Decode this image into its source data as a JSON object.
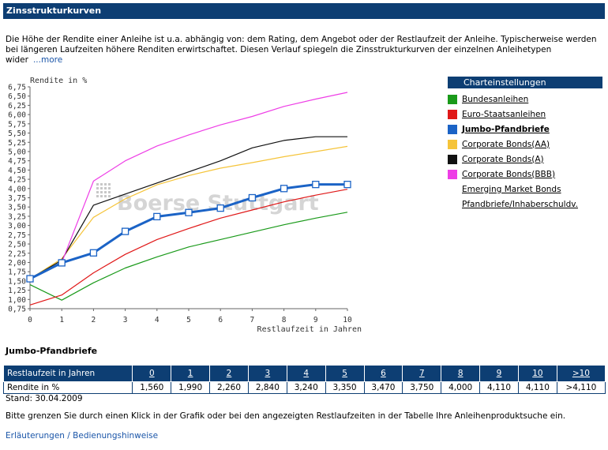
{
  "page": {
    "title": "Zinsstrukturkurven",
    "intro_text": "Die Höhe der Rendite einer Anleihe ist u.a. abhängig von: dem Rating, dem Angebot oder der Restlaufzeit der Anleihe. Typischerweise werden bei längeren Laufzeiten höhere Renditen erwirtschaftet. Diesen Verlauf spiegeln die Zinsstrukturkurven der einzelnen Anleihetypen wider",
    "more_link": "...more",
    "watermark": "Boerse Stuttgart"
  },
  "settings": {
    "title": "Charteinstellungen",
    "items": [
      {
        "label": "Bundesanleihen",
        "color": "#1a9a1a",
        "active": false
      },
      {
        "label": "Euro-Staatsanleihen",
        "color": "#e01818",
        "active": false
      },
      {
        "label": "Jumbo-Pfandbriefe",
        "color": "#1b63c6",
        "active": true
      },
      {
        "label": "Corporate Bonds(AA)",
        "color": "#f5c43a",
        "active": false
      },
      {
        "label": "Corporate Bonds(A)",
        "color": "#111111",
        "active": false
      },
      {
        "label": "Corporate Bonds(BBB)",
        "color": "#ee3ee6",
        "active": false
      },
      {
        "label": "Emerging Market Bonds",
        "color": "",
        "active": false
      },
      {
        "label": "Pfandbriefe/Inhaberschuldv.",
        "color": "",
        "active": false
      }
    ]
  },
  "chart_data": {
    "type": "line",
    "title": "",
    "ylabel": "Rendite in %",
    "xlabel": "Restlaufzeit in Jahren",
    "x": [
      0,
      1,
      2,
      3,
      4,
      5,
      6,
      7,
      8,
      9,
      10
    ],
    "xlim": [
      0,
      10
    ],
    "ylim": [
      0.75,
      6.75
    ],
    "ytick_step": 0.25,
    "ytick_labels": [
      "6,75",
      "6,50",
      "6,25",
      "6,00",
      "5,75",
      "5,50",
      "5,25",
      "5,00",
      "4,75",
      "4,50",
      "4,25",
      "4,00",
      "3,75",
      "3,50",
      "3,25",
      "3,00",
      "2,75",
      "2,50",
      "2,25",
      "2,00",
      "1,75",
      "1,50",
      "1,25",
      "1,00",
      "0,75"
    ],
    "xtick_labels": [
      "0",
      "1",
      "2",
      "3",
      "4",
      "5",
      "6",
      "7",
      "8",
      "9",
      "10"
    ],
    "grid": false,
    "series": [
      {
        "name": "Bundesanleihen",
        "color": "#1a9a1a",
        "values": [
          1.4,
          0.98,
          1.45,
          1.85,
          2.15,
          2.42,
          2.62,
          2.82,
          3.02,
          3.2,
          3.36
        ],
        "highlight": false
      },
      {
        "name": "Euro-Staatsanleihen",
        "color": "#e01818",
        "values": [
          0.85,
          1.12,
          1.72,
          2.22,
          2.62,
          2.92,
          3.2,
          3.42,
          3.64,
          3.82,
          3.98
        ],
        "highlight": false
      },
      {
        "name": "Corporate Bonds(AA)",
        "color": "#f5c43a",
        "values": [
          1.56,
          2.1,
          3.22,
          3.72,
          4.1,
          4.35,
          4.55,
          4.7,
          4.86,
          5.0,
          5.14
        ],
        "highlight": false
      },
      {
        "name": "Corporate Bonds(A)",
        "color": "#111111",
        "values": [
          1.56,
          2.06,
          3.55,
          3.85,
          4.15,
          4.45,
          4.75,
          5.1,
          5.3,
          5.4,
          5.4
        ],
        "highlight": false
      },
      {
        "name": "Corporate Bonds(BBB)",
        "color": "#ee3ee6",
        "values": [
          1.56,
          2.0,
          4.2,
          4.75,
          5.15,
          5.45,
          5.72,
          5.95,
          6.22,
          6.42,
          6.6
        ],
        "highlight": false
      },
      {
        "name": "Jumbo-Pfandbriefe",
        "color": "#1b63c6",
        "values": [
          1.56,
          1.99,
          2.26,
          2.84,
          3.24,
          3.35,
          3.47,
          3.75,
          4.0,
          4.11,
          4.11
        ],
        "highlight": true
      }
    ]
  },
  "table": {
    "title": "Jumbo-Pfandbriefe",
    "header_label": "Restlaufzeit in Jahren",
    "columns": [
      "0",
      "1",
      "2",
      "3",
      "4",
      "5",
      "6",
      "7",
      "8",
      "9",
      "10",
      ">10"
    ],
    "row_label": "Rendite in %",
    "values": [
      "1,560",
      "1,990",
      "2,260",
      "2,840",
      "3,240",
      "3,350",
      "3,470",
      "3,750",
      "4,000",
      "4,110",
      "4,110",
      ">4,110"
    ],
    "stand": "Stand: 30.04.2009"
  },
  "hint": "Bitte grenzen Sie durch einen Klick in der Grafik oder bei den angezeigten Restlaufzeiten in der Tabelle Ihre Anleihenproduktsuche ein.",
  "footer_link": "Erläuterungen / Bedienungshinweise"
}
